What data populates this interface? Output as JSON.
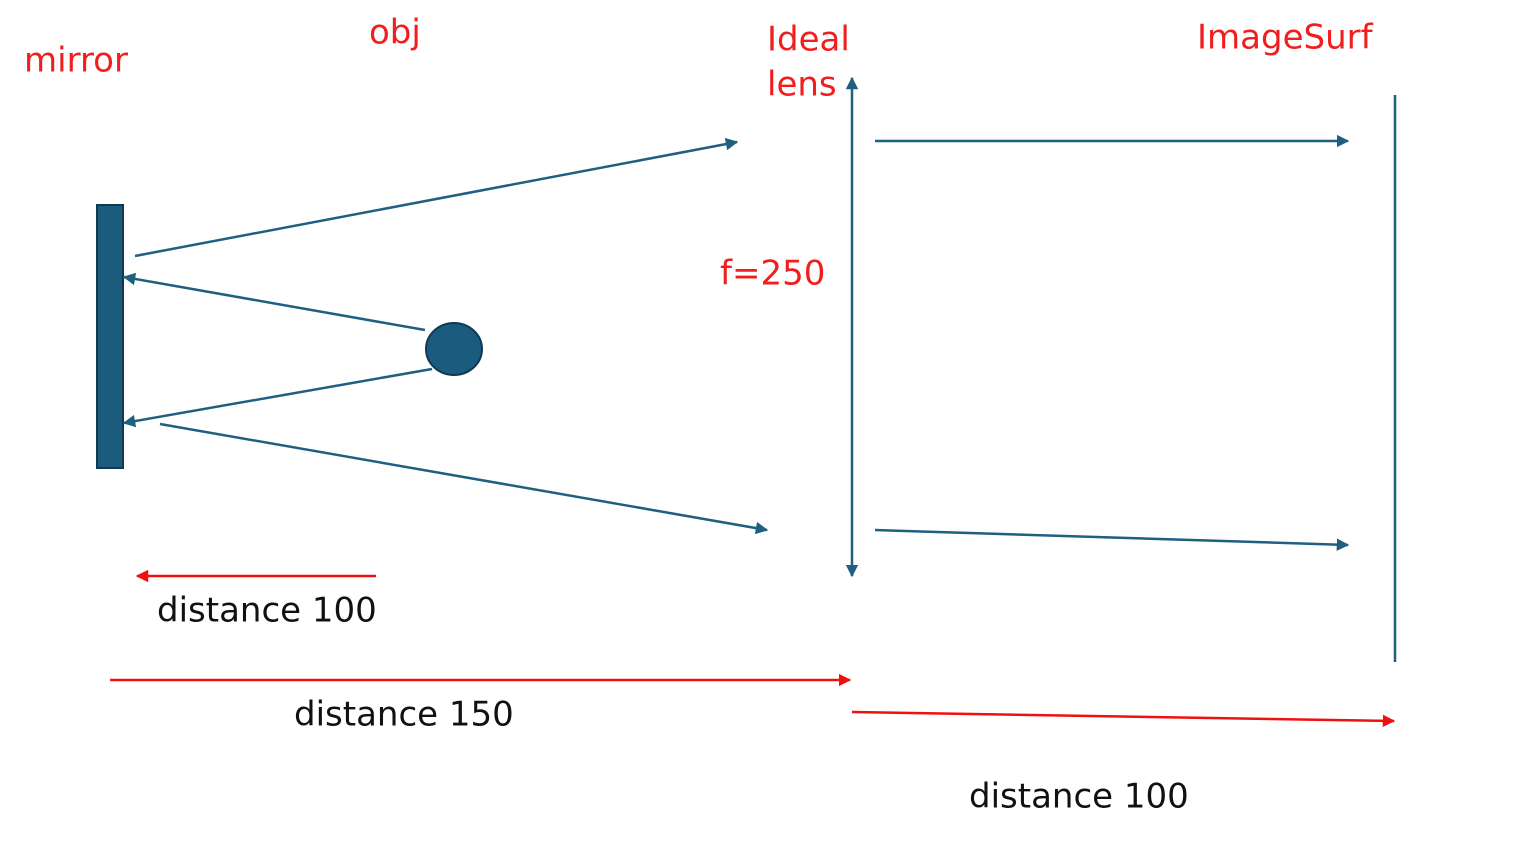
{
  "labels": {
    "mirror": "mirror",
    "obj": "obj",
    "lens": [
      "Ideal",
      "lens"
    ],
    "image_surface": "ImageSurf",
    "focal_length": "f=250"
  },
  "distances": [
    "distance 100",
    "distance 150",
    "distance 100"
  ]
}
